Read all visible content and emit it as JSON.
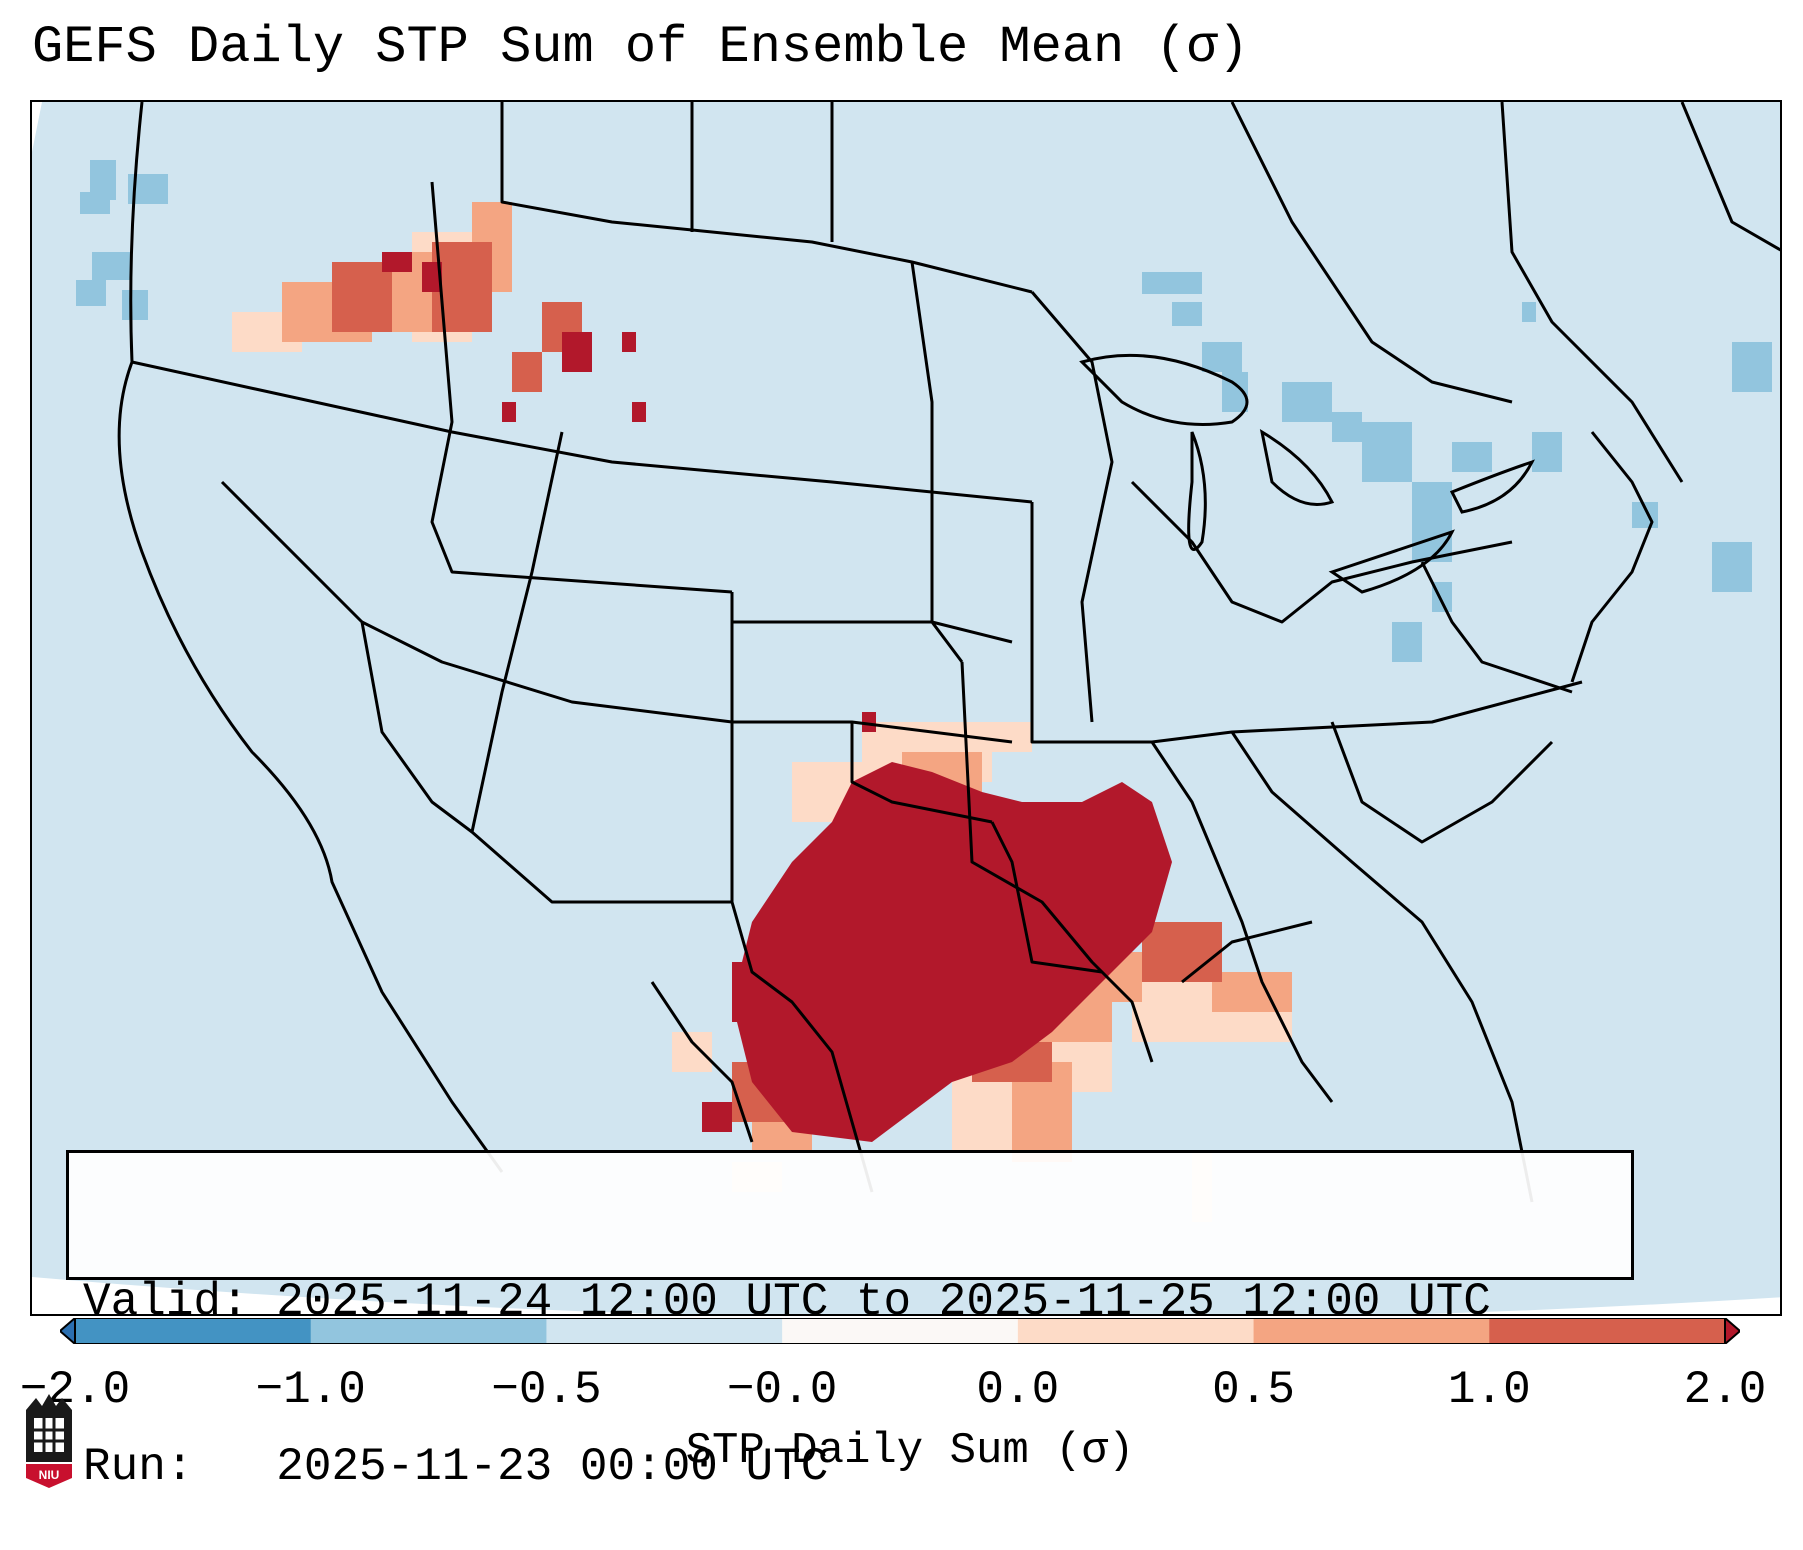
{
  "title": "GEFS Daily STP Sum of Ensemble Mean (σ)",
  "info": {
    "valid_line": "Valid: 2025-11-24 12:00 UTC to 2025-11-25 12:00 UTC",
    "run_line": "Run:   2025-11-23 00:00 UTC"
  },
  "colorbar": {
    "label": "STP Daily Sum (σ)",
    "ticks": [
      "−2.0",
      "−1.0",
      "−0.5",
      "−0.0",
      "0.0",
      "0.5",
      "1.0",
      "2.0"
    ],
    "colors": [
      "#2b6fb0",
      "#4393c3",
      "#92c5de",
      "#d1e5f0",
      "#fbf8f6",
      "#fddbc7",
      "#f4a582",
      "#d6604d",
      "#b2182b"
    ]
  },
  "map": {
    "background": "#d1e5f0",
    "region": "CONUS",
    "state_lines_color": "#000000"
  },
  "logo": {
    "text": "NIU",
    "name": "Northern Illinois University"
  }
}
